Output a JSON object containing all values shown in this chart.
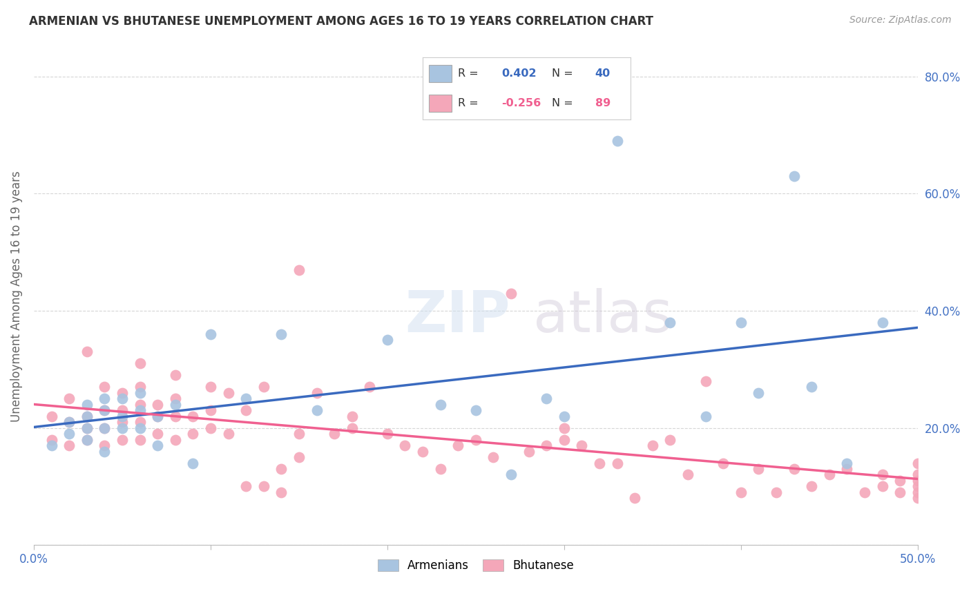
{
  "title": "ARMENIAN VS BHUTANESE UNEMPLOYMENT AMONG AGES 16 TO 19 YEARS CORRELATION CHART",
  "source": "Source: ZipAtlas.com",
  "ylabel": "Unemployment Among Ages 16 to 19 years",
  "xlim": [
    0.0,
    0.5
  ],
  "ylim": [
    0.0,
    0.85
  ],
  "x_ticks": [
    0.0,
    0.1,
    0.2,
    0.3,
    0.4,
    0.5
  ],
  "y_ticks": [
    0.0,
    0.2,
    0.4,
    0.6,
    0.8
  ],
  "armenian_R": 0.402,
  "armenian_N": 40,
  "bhutanese_R": -0.256,
  "bhutanese_N": 89,
  "armenian_color": "#a8c4e0",
  "bhutanese_color": "#f4a7b9",
  "armenian_line_color": "#3a6abf",
  "bhutanese_line_color": "#f06090",
  "background_color": "#ffffff",
  "grid_color": "#cccccc",
  "armenians_x": [
    0.01,
    0.02,
    0.02,
    0.03,
    0.03,
    0.03,
    0.03,
    0.04,
    0.04,
    0.04,
    0.04,
    0.05,
    0.05,
    0.05,
    0.06,
    0.06,
    0.06,
    0.07,
    0.07,
    0.08,
    0.09,
    0.1,
    0.12,
    0.14,
    0.16,
    0.2,
    0.23,
    0.25,
    0.27,
    0.29,
    0.3,
    0.33,
    0.36,
    0.38,
    0.4,
    0.41,
    0.43,
    0.44,
    0.46,
    0.48
  ],
  "armenians_y": [
    0.17,
    0.19,
    0.21,
    0.18,
    0.2,
    0.22,
    0.24,
    0.16,
    0.2,
    0.23,
    0.25,
    0.2,
    0.22,
    0.25,
    0.2,
    0.23,
    0.26,
    0.17,
    0.22,
    0.24,
    0.14,
    0.36,
    0.25,
    0.36,
    0.23,
    0.35,
    0.24,
    0.23,
    0.12,
    0.25,
    0.22,
    0.69,
    0.38,
    0.22,
    0.38,
    0.26,
    0.63,
    0.27,
    0.14,
    0.38
  ],
  "bhutanese_x": [
    0.01,
    0.01,
    0.02,
    0.02,
    0.02,
    0.03,
    0.03,
    0.03,
    0.03,
    0.04,
    0.04,
    0.04,
    0.04,
    0.05,
    0.05,
    0.05,
    0.05,
    0.06,
    0.06,
    0.06,
    0.06,
    0.06,
    0.07,
    0.07,
    0.07,
    0.08,
    0.08,
    0.08,
    0.08,
    0.09,
    0.09,
    0.1,
    0.1,
    0.1,
    0.11,
    0.11,
    0.12,
    0.12,
    0.13,
    0.13,
    0.14,
    0.14,
    0.15,
    0.15,
    0.15,
    0.16,
    0.17,
    0.18,
    0.18,
    0.19,
    0.2,
    0.21,
    0.22,
    0.23,
    0.24,
    0.25,
    0.26,
    0.27,
    0.28,
    0.29,
    0.3,
    0.3,
    0.31,
    0.32,
    0.33,
    0.34,
    0.35,
    0.36,
    0.37,
    0.38,
    0.39,
    0.4,
    0.41,
    0.42,
    0.43,
    0.44,
    0.45,
    0.46,
    0.47,
    0.48,
    0.48,
    0.49,
    0.49,
    0.5,
    0.5,
    0.5,
    0.5,
    0.5,
    0.5
  ],
  "bhutanese_y": [
    0.18,
    0.22,
    0.17,
    0.21,
    0.25,
    0.18,
    0.2,
    0.22,
    0.33,
    0.17,
    0.2,
    0.23,
    0.27,
    0.18,
    0.21,
    0.23,
    0.26,
    0.18,
    0.21,
    0.24,
    0.27,
    0.31,
    0.19,
    0.22,
    0.24,
    0.18,
    0.22,
    0.25,
    0.29,
    0.19,
    0.22,
    0.2,
    0.23,
    0.27,
    0.19,
    0.26,
    0.1,
    0.23,
    0.1,
    0.27,
    0.09,
    0.13,
    0.15,
    0.19,
    0.47,
    0.26,
    0.19,
    0.2,
    0.22,
    0.27,
    0.19,
    0.17,
    0.16,
    0.13,
    0.17,
    0.18,
    0.15,
    0.43,
    0.16,
    0.17,
    0.18,
    0.2,
    0.17,
    0.14,
    0.14,
    0.08,
    0.17,
    0.18,
    0.12,
    0.28,
    0.14,
    0.09,
    0.13,
    0.09,
    0.13,
    0.1,
    0.12,
    0.13,
    0.09,
    0.1,
    0.12,
    0.09,
    0.11,
    0.08,
    0.09,
    0.1,
    0.11,
    0.12,
    0.14
  ]
}
